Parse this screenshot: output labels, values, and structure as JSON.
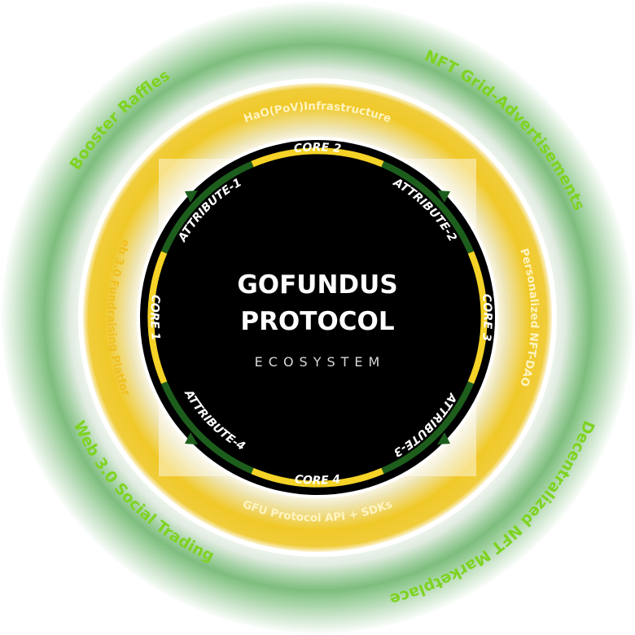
{
  "center": {
    "title_line1": "GOFUNDUS",
    "title_line2": "PROTOCOL",
    "subtitle": "ECOSYSTEM"
  },
  "outer_ring": {
    "top_left": "Booster Raffles",
    "top_right": "NFT Grid-Advertisements",
    "bottom_right": "Decentralized NFT Marketplace",
    "bottom_left": "Web 3.0 Social Trading"
  },
  "middle_ring": {
    "top": "HaO(PoV)Infrastructure",
    "right": "Personalized NFT-DAO",
    "bottom": "GFU Protocol API + SDKs",
    "left": "Web 3.0 Fundraising Platform"
  },
  "inner_ring": {
    "core_1": "CORE 1",
    "core_2": "CORE 2",
    "core_3": "CORE 3",
    "core_4": "CORE 4",
    "attribute_1": "ATTRIBUTE-1",
    "attribute_2": "ATTRIBUTE-2",
    "attribute_3": "ATTRIBUTE-3",
    "attribute_4": "ATTRIBUTE-4"
  },
  "colors": {
    "outer_text": "#7ed321",
    "outer_glow": "#5fd35f",
    "middle_fill": "#f2cc33",
    "middle_text": "#fff4c2",
    "core_segment": "#f5d327",
    "attribute_segment": "#1d5e1d",
    "disk": "#000000"
  }
}
